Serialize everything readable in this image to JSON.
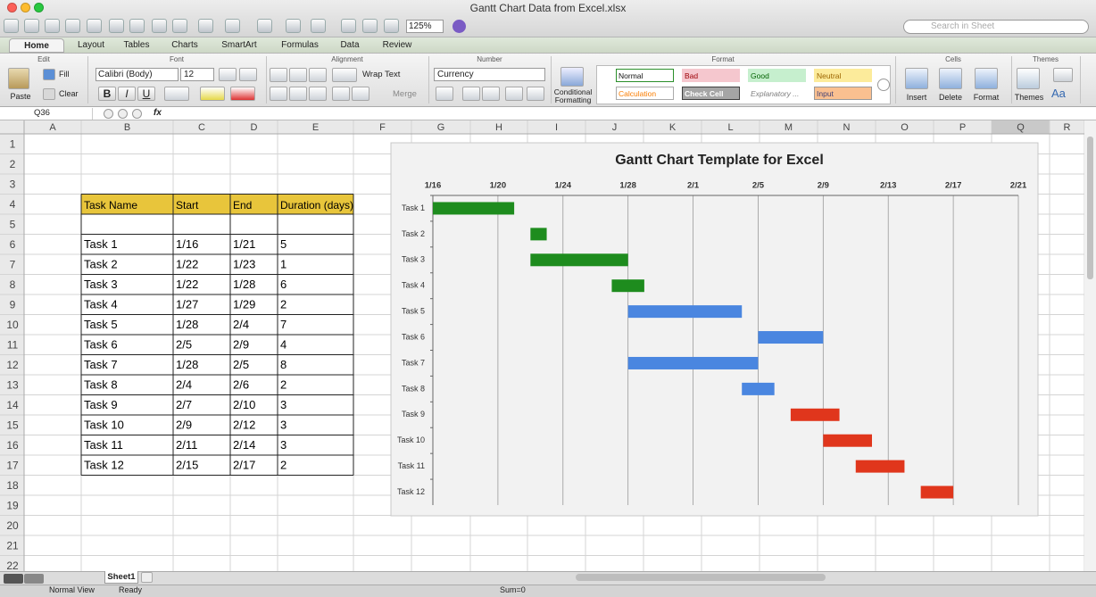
{
  "window": {
    "title": "Gantt Chart Data from Excel.xlsx",
    "zoom": "125%",
    "search": "Search in Sheet"
  },
  "tabs": [
    "Home",
    "Layout",
    "Tables",
    "Charts",
    "SmartArt",
    "Formulas",
    "Data",
    "Review"
  ],
  "ribbon": {
    "groups": [
      "Edit",
      "Font",
      "Alignment",
      "Number",
      "Format",
      "Cells",
      "Themes"
    ],
    "edit": [
      "Paste",
      "Fill",
      "Clear"
    ],
    "font": {
      "name": "Calibri (Body)",
      "size": "12",
      "styles": [
        "B",
        "I",
        "U"
      ]
    },
    "alignment": [
      "Wrap Text",
      "Merge"
    ],
    "number": {
      "format": "Currency",
      "conditional": "Conditional Formatting"
    },
    "styles": [
      "Normal",
      "Bad",
      "Good",
      "Neutral",
      "Calculation",
      "Check Cell",
      "Explanatory ...",
      "Input"
    ],
    "cells": [
      "Insert",
      "Delete",
      "Format"
    ],
    "themes": [
      "Themes",
      "Aa"
    ]
  },
  "formula_bar": {
    "cell": "Q36",
    "fx": "fx"
  },
  "sheet": {
    "columns": [
      "A",
      "B",
      "C",
      "D",
      "E",
      "F",
      "G",
      "H",
      "I",
      "J",
      "K",
      "L",
      "M",
      "N",
      "O",
      "P",
      "Q",
      "R"
    ],
    "rows": [
      1,
      2,
      3,
      4,
      5,
      6,
      7,
      8,
      9,
      10,
      11,
      12,
      13,
      14,
      15,
      16,
      17,
      18,
      19,
      20,
      21,
      22
    ]
  },
  "table": {
    "header": [
      "Task Name",
      "Start",
      "End",
      "Duration (days)"
    ],
    "rows": [
      [
        "Task 1",
        "1/16",
        "1/21",
        5
      ],
      [
        "Task 2",
        "1/22",
        "1/23",
        1
      ],
      [
        "Task 3",
        "1/22",
        "1/28",
        6
      ],
      [
        "Task 4",
        "1/27",
        "1/29",
        2
      ],
      [
        "Task 5",
        "1/28",
        "2/4",
        7
      ],
      [
        "Task 6",
        "2/5",
        "2/9",
        4
      ],
      [
        "Task 7",
        "1/28",
        "2/5",
        8
      ],
      [
        "Task 8",
        "2/4",
        "2/6",
        2
      ],
      [
        "Task 9",
        "2/7",
        "2/10",
        3
      ],
      [
        "Task 10",
        "2/9",
        "2/12",
        3
      ],
      [
        "Task 11",
        "2/11",
        "2/14",
        3
      ],
      [
        "Task 12",
        "2/15",
        "2/17",
        2
      ]
    ]
  },
  "chart_data": {
    "type": "gantt",
    "title": "Gantt Chart Template for Excel",
    "categories": [
      "Task 1",
      "Task 2",
      "Task 3",
      "Task 4",
      "Task 5",
      "Task 6",
      "Task 7",
      "Task 8",
      "Task 9",
      "Task 10",
      "Task 11",
      "Task 12"
    ],
    "starts": [
      16,
      22,
      22,
      27,
      28,
      36,
      28,
      35,
      38,
      40,
      42,
      46
    ],
    "values": [
      5,
      1,
      6,
      2,
      7,
      4,
      8,
      2,
      3,
      3,
      3,
      2
    ],
    "colors": [
      "#1e8c1e",
      "#1e8c1e",
      "#1e8c1e",
      "#1e8c1e",
      "#4a86e0",
      "#4a86e0",
      "#4a86e0",
      "#4a86e0",
      "#e0361c",
      "#e0361c",
      "#e0361c",
      "#e0361c"
    ],
    "xlim": [
      16,
      52
    ],
    "xticks": [
      {
        "value": 16,
        "label": "1/16"
      },
      {
        "value": 20,
        "label": "1/20"
      },
      {
        "value": 24,
        "label": "1/24"
      },
      {
        "value": 28,
        "label": "1/28"
      },
      {
        "value": 32,
        "label": "2/1"
      },
      {
        "value": 36,
        "label": "2/5"
      },
      {
        "value": 40,
        "label": "2/9"
      },
      {
        "value": 44,
        "label": "2/13"
      },
      {
        "value": 48,
        "label": "2/17"
      },
      {
        "value": 52,
        "label": "2/21"
      }
    ],
    "grid": true
  },
  "footer": {
    "sheet_tab": "Sheet1",
    "view": "Normal View",
    "status": "Ready",
    "sum": "Sum=0"
  }
}
